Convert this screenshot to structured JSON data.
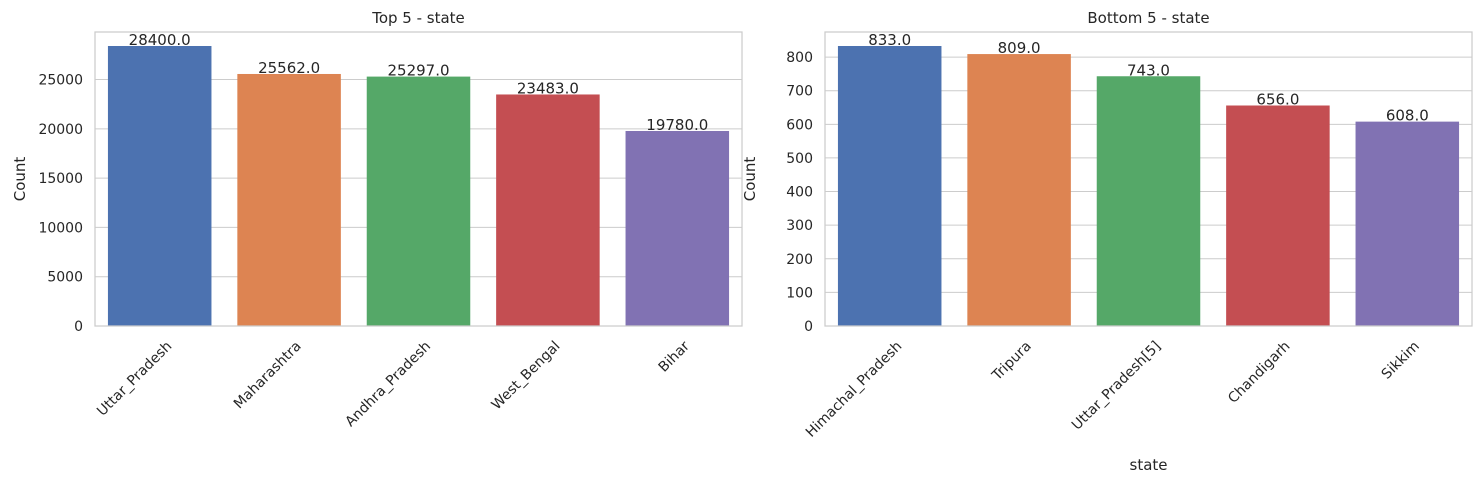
{
  "chart_data": [
    {
      "type": "bar",
      "title": "Top 5  - state",
      "xlabel": "",
      "ylabel": "Count",
      "categories": [
        "Uttar_Pradesh",
        "Maharashtra",
        "Andhra_Pradesh",
        "West_Bengal",
        "Bihar"
      ],
      "values": [
        28400,
        25562,
        25297,
        23483,
        19780
      ],
      "data_labels": [
        "28400.0",
        "25562.0",
        "25297.0",
        "23483.0",
        "19780.0"
      ],
      "ylim": [
        0,
        29820
      ],
      "yticks": [
        0,
        5000,
        10000,
        15000,
        20000,
        25000
      ],
      "colors": [
        "#4c72b0",
        "#dd8452",
        "#55a868",
        "#c44e52",
        "#8172b3"
      ],
      "grid": "horizontal",
      "legend": "none"
    },
    {
      "type": "bar",
      "title": "Bottom 5  - state",
      "xlabel": "state",
      "ylabel": "Count",
      "categories": [
        "Himachal_Pradesh",
        "Tripura",
        "Uttar_Pradesh[5]",
        "Chandigarh",
        "Sikkim"
      ],
      "values": [
        833,
        809,
        743,
        656,
        608
      ],
      "data_labels": [
        "833.0",
        "809.0",
        "743.0",
        "656.0",
        "608.0"
      ],
      "ylim": [
        0,
        874.65
      ],
      "yticks": [
        0,
        100,
        200,
        300,
        400,
        500,
        600,
        700,
        800
      ],
      "colors": [
        "#4c72b0",
        "#dd8452",
        "#55a868",
        "#c44e52",
        "#8172b3"
      ],
      "grid": "horizontal",
      "legend": "none"
    }
  ]
}
